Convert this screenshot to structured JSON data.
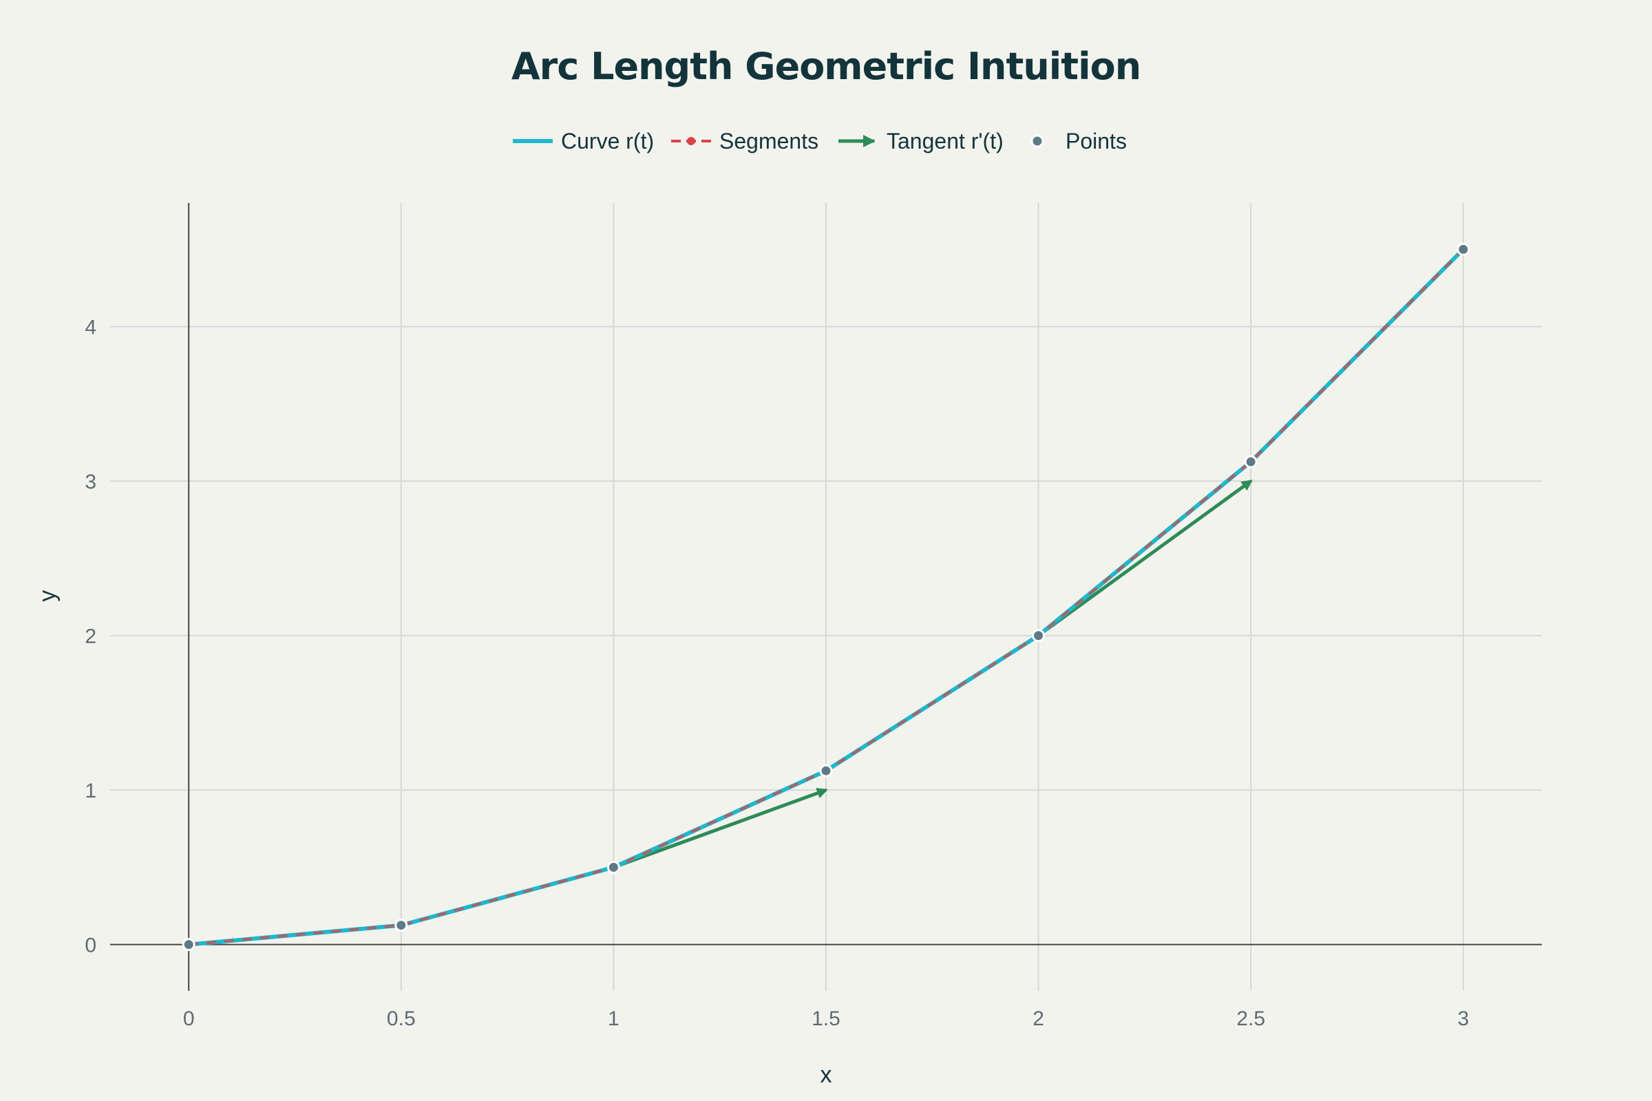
{
  "chart_data": {
    "type": "line",
    "title": "Arc Length Geometric Intuition",
    "xlabel": "x",
    "ylabel": "y",
    "xlim": [
      -0.185,
      3.185
    ],
    "ylim": [
      -0.3,
      4.8
    ],
    "x_ticks": [
      0,
      0.5,
      1,
      1.5,
      2,
      2.5,
      3
    ],
    "x_tick_labels": [
      "0",
      "0.5",
      "1",
      "1.5",
      "2",
      "2.5",
      "3"
    ],
    "y_ticks": [
      0,
      1,
      2,
      3,
      4
    ],
    "y_tick_labels": [
      "0",
      "1",
      "2",
      "3",
      "4"
    ],
    "grid": true,
    "legend_position": "top-center",
    "series": [
      {
        "name": "Curve r(t)",
        "kind": "line",
        "color": "#1fb8cd",
        "x": [
          0,
          0.5,
          1,
          1.5,
          2,
          2.5,
          3
        ],
        "y": [
          0,
          0.125,
          0.5,
          1.125,
          2,
          3.125,
          4.5
        ]
      },
      {
        "name": "Segments",
        "kind": "dashed-line-markers",
        "color": "#db4545",
        "x": [
          0,
          0.5,
          1,
          1.5,
          2,
          2.5,
          3
        ],
        "y": [
          0,
          0.125,
          0.5,
          1.125,
          2,
          3.125,
          4.5
        ]
      },
      {
        "name": "Tangent r'(t)",
        "kind": "arrows",
        "color": "#2e8b57",
        "segments": [
          {
            "x": [
              1,
              1.5
            ],
            "y": [
              0.5,
              1
            ]
          },
          {
            "x": [
              2,
              2.5
            ],
            "y": [
              2,
              3
            ]
          }
        ]
      },
      {
        "name": "Points",
        "kind": "markers",
        "color": "#5d7b86",
        "x": [
          0,
          0.5,
          1,
          1.5,
          2,
          2.5,
          3
        ],
        "y": [
          0,
          0.125,
          0.5,
          1.125,
          2,
          3.125,
          4.5
        ]
      }
    ]
  }
}
